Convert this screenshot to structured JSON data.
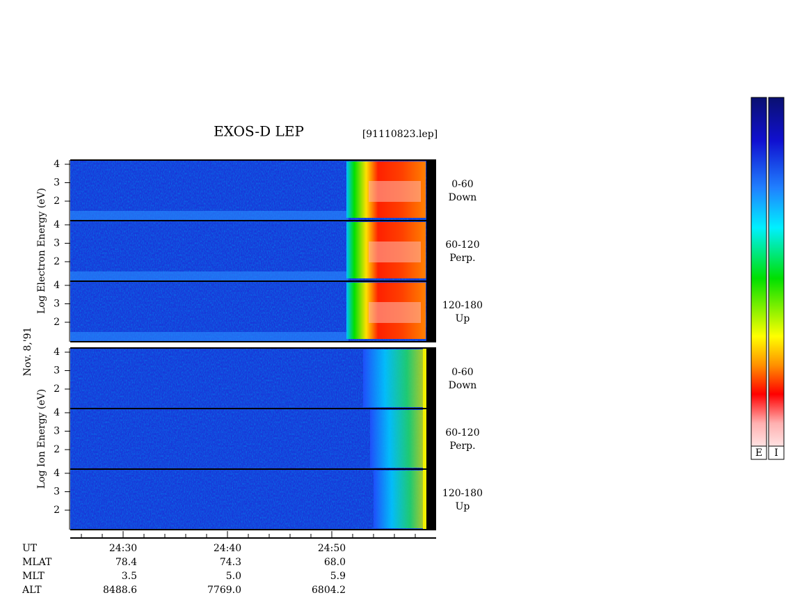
{
  "header": {
    "title": "EXOS-D LEP",
    "file": "[91110823.lep]"
  },
  "date": "Nov. 8,'91",
  "groups": [
    {
      "axis_label": "Log Electron Energy (eV)"
    },
    {
      "axis_label": "Log Ion Energy (eV)"
    }
  ],
  "pitch_angles": [
    {
      "range": "0-60",
      "direction": "Down"
    },
    {
      "range": "60-120",
      "direction": "Perp."
    },
    {
      "range": "120-180",
      "direction": "Up"
    }
  ],
  "energy_ticks": [
    "4",
    "3",
    "2"
  ],
  "time_ticks": [
    "24:30",
    "24:40",
    "24:50"
  ],
  "ephemeris": {
    "labels": [
      "UT",
      "MLAT",
      "MLT",
      "ALT"
    ],
    "rows": [
      [
        "78.4",
        "74.3",
        "68.0"
      ],
      [
        "3.5",
        "5.0",
        "5.9"
      ],
      [
        "8488.6",
        "7769.0",
        "6804.2"
      ]
    ]
  },
  "colorbar_labels": [
    "E",
    "I"
  ]
}
